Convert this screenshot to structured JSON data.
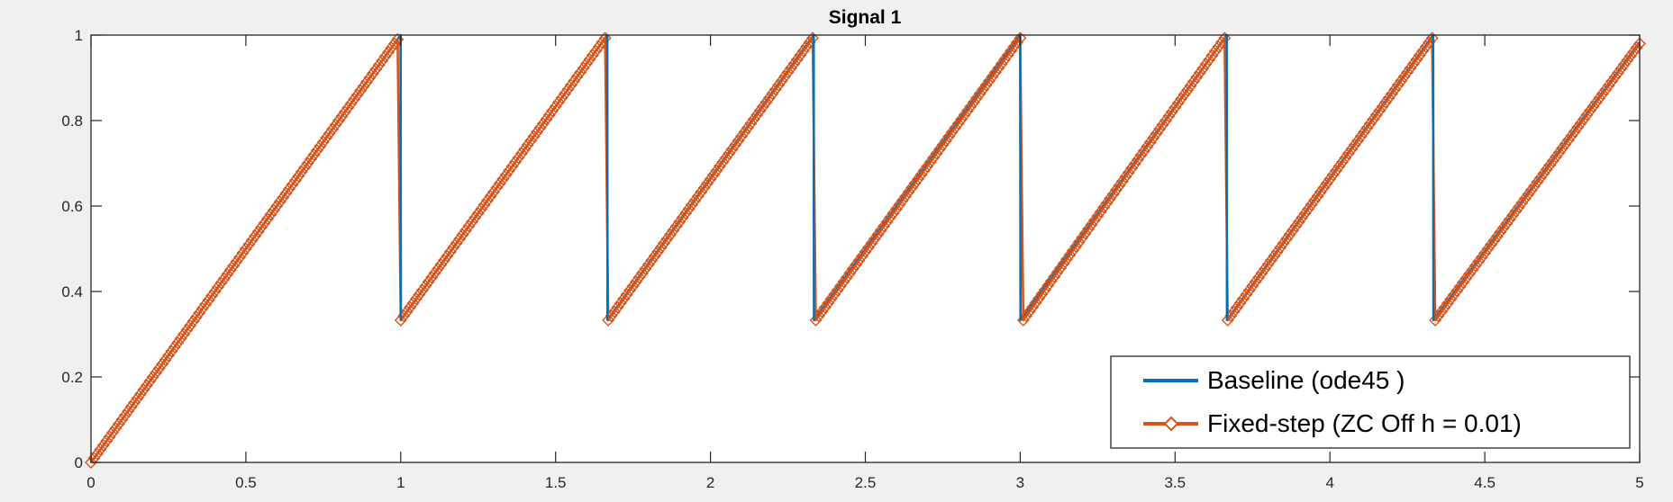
{
  "chart_data": {
    "type": "line",
    "title": "Signal 1",
    "xlabel": "",
    "ylabel": "",
    "xlim": [
      0,
      5
    ],
    "ylim": [
      0,
      1
    ],
    "xticks": [
      0,
      0.5,
      1,
      1.5,
      2,
      2.5,
      3,
      3.5,
      4,
      4.5,
      5
    ],
    "xtick_labels": [
      "0",
      "0.5",
      "1",
      "1.5",
      "2",
      "2.5",
      "3",
      "3.5",
      "4",
      "4.5",
      "5"
    ],
    "yticks": [
      0,
      0.2,
      0.4,
      0.6,
      0.8,
      1
    ],
    "ytick_labels": [
      "0",
      "0.2",
      "0.4",
      "0.6",
      "0.8",
      "1"
    ],
    "grid": false,
    "legend_position": "bottom-right",
    "series": [
      {
        "name": "Baseline (ode45 )",
        "color": "#0072bd",
        "marker": "none",
        "x": [
          0,
          0.9995,
          1.0005,
          1.6667,
          1.6677,
          2.3333,
          2.3343,
          3.0,
          3.001,
          3.6667,
          3.6677,
          4.3333,
          4.3343,
          5.0
        ],
        "y": [
          0,
          1.0,
          0.333,
          1.0,
          0.333,
          1.0,
          0.333,
          1.0,
          0.333,
          1.0,
          0.333,
          1.0,
          0.333,
          0.9835
        ]
      },
      {
        "name": "Fixed-step (ZC Off h = 0.01)",
        "color": "#d95319",
        "marker": "diamond",
        "step": 0.01,
        "x": [
          0,
          0.99,
          1.0,
          1.66,
          1.67,
          2.33,
          2.34,
          3.0,
          3.01,
          3.66,
          3.67,
          4.33,
          4.34,
          5.0
        ],
        "y": [
          0,
          0.99,
          0.333,
          0.993,
          0.333,
          0.993,
          0.333,
          0.993,
          0.333,
          0.993,
          0.333,
          0.993,
          0.333,
          0.98
        ]
      }
    ]
  }
}
